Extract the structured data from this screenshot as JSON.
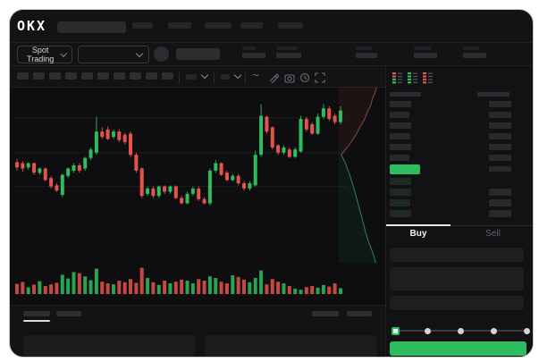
{
  "header": {
    "brand": "OKX",
    "market_selector": "Spot Trading"
  },
  "colors": {
    "up": "#2ebd5e",
    "down": "#e5534b",
    "accent": "#2ebd5e",
    "ask_line": "#8a4a46",
    "bid_line": "#2f7f62"
  },
  "skeleton": {
    "nav_items": [
      23,
      26,
      30,
      25,
      28
    ],
    "ticker_stats": [
      {
        "t": 15,
        "b": 26
      },
      {
        "t": 24,
        "b": 28
      },
      {
        "t": 18,
        "b": 24
      },
      {
        "t": 20,
        "b": 26
      },
      {
        "t": 18,
        "b": 26
      }
    ],
    "interval_buttons": 10,
    "bottom_tabs": [
      30,
      28
    ],
    "bottom_right_items": [
      30,
      28
    ]
  },
  "toolbar_icons": [
    "indicator-dropdown",
    "indicator-dropdown",
    "line-wave-icon",
    "draw-pencil-icon",
    "camera-icon",
    "history-icon",
    "fullscreen-icon"
  ],
  "chart_data": {
    "type": "candlestick",
    "title": "",
    "xlabel": "",
    "ylabel": "",
    "ylim": [
      0,
      100
    ],
    "grid": true,
    "gridlines": [
      84,
      51,
      19
    ],
    "candles": [
      [
        42,
        45,
        34,
        37
      ],
      [
        41,
        43,
        33,
        36
      ],
      [
        37,
        42,
        35,
        41
      ],
      [
        41,
        42,
        30,
        32
      ],
      [
        32,
        37,
        30,
        36
      ],
      [
        36,
        37,
        24,
        25
      ],
      [
        27,
        29,
        17,
        19
      ],
      [
        20,
        22,
        14,
        15
      ],
      [
        11,
        31,
        9,
        30
      ],
      [
        29,
        37,
        27,
        36
      ],
      [
        34,
        41,
        32,
        39
      ],
      [
        39,
        41,
        32,
        34
      ],
      [
        36,
        47,
        34,
        46
      ],
      [
        46,
        56,
        44,
        54
      ],
      [
        51,
        85,
        49,
        71
      ],
      [
        71,
        75,
        64,
        66
      ],
      [
        73,
        76,
        63,
        64
      ],
      [
        66,
        73,
        64,
        71
      ],
      [
        71,
        73,
        61,
        63
      ],
      [
        68,
        70,
        59,
        61
      ],
      [
        69,
        71,
        47,
        49
      ],
      [
        49,
        51,
        32,
        34
      ],
      [
        36,
        37,
        8,
        10
      ],
      [
        12,
        19,
        10,
        17
      ],
      [
        17,
        19,
        8,
        10
      ],
      [
        10,
        20,
        8,
        19
      ],
      [
        19,
        20,
        12,
        14
      ],
      [
        14,
        20,
        12,
        19
      ],
      [
        19,
        20,
        7,
        8
      ],
      [
        8,
        10,
        2,
        3
      ],
      [
        3,
        14,
        2,
        12
      ],
      [
        12,
        19,
        10,
        17
      ],
      [
        17,
        19,
        5,
        7
      ],
      [
        7,
        9,
        2,
        3
      ],
      [
        3,
        36,
        1,
        34
      ],
      [
        34,
        44,
        32,
        41
      ],
      [
        41,
        42,
        29,
        30
      ],
      [
        32,
        34,
        24,
        25
      ],
      [
        25,
        31,
        24,
        29
      ],
      [
        29,
        31,
        20,
        22
      ],
      [
        22,
        24,
        15,
        17
      ],
      [
        17,
        24,
        15,
        22
      ],
      [
        20,
        53,
        19,
        49
      ],
      [
        49,
        97,
        47,
        86
      ],
      [
        85,
        86,
        69,
        71
      ],
      [
        75,
        76,
        54,
        56
      ],
      [
        58,
        59,
        49,
        51
      ],
      [
        51,
        58,
        49,
        56
      ],
      [
        54,
        56,
        46,
        47
      ],
      [
        47,
        56,
        46,
        54
      ],
      [
        52,
        86,
        51,
        83
      ],
      [
        83,
        85,
        71,
        73
      ],
      [
        78,
        80,
        68,
        69
      ],
      [
        69,
        88,
        68,
        85
      ],
      [
        85,
        97,
        83,
        93
      ],
      [
        93,
        95,
        81,
        83
      ],
      [
        86,
        88,
        78,
        80
      ],
      [
        80,
        95,
        78,
        91
      ]
    ],
    "volume": [
      38,
      45,
      25,
      35,
      48,
      30,
      36,
      42,
      72,
      58,
      82,
      78,
      66,
      52,
      95,
      46,
      40,
      36,
      50,
      44,
      56,
      42,
      98,
      60,
      44,
      34,
      50,
      40,
      46,
      54,
      50,
      40,
      56,
      50,
      66,
      60,
      46,
      40,
      70,
      64,
      54,
      44,
      60,
      88,
      36,
      56,
      46,
      40,
      30,
      20,
      16,
      26,
      30,
      24,
      34,
      28,
      40,
      22
    ]
  },
  "depth": {
    "asks": [
      [
        0.92,
        0
      ],
      [
        0.88,
        0.08
      ],
      [
        0.82,
        0.16
      ],
      [
        0.78,
        0.26
      ],
      [
        0.7,
        0.36
      ],
      [
        0.62,
        0.48
      ],
      [
        0.52,
        0.58
      ],
      [
        0.44,
        0.68
      ],
      [
        0.34,
        0.78
      ],
      [
        0.22,
        0.88
      ],
      [
        0.06,
        1
      ]
    ],
    "bids": [
      [
        0.06,
        0
      ],
      [
        0.16,
        0.08
      ],
      [
        0.26,
        0.18
      ],
      [
        0.36,
        0.3
      ],
      [
        0.46,
        0.44
      ],
      [
        0.56,
        0.58
      ],
      [
        0.64,
        0.7
      ],
      [
        0.72,
        0.8
      ],
      [
        0.82,
        0.9
      ],
      [
        0.9,
        1
      ]
    ]
  },
  "order_book": {
    "view_modes": [
      "book-split-icon",
      "book-buys-icon",
      "book-sells-icon"
    ],
    "header": {
      "l": 35,
      "r": 36
    },
    "asks": [
      {
        "l": 24,
        "r": 25
      },
      {
        "l": 22,
        "r": 25
      },
      {
        "l": 24,
        "r": 25
      },
      {
        "l": 23,
        "r": 25
      },
      {
        "l": 24,
        "r": 25
      },
      {
        "l": 22,
        "r": 25
      }
    ],
    "last_price_row": {
      "w": 34,
      "r": 25
    },
    "bids": [
      {
        "l": 24,
        "r": 0
      },
      {
        "l": 24,
        "r": 25
      },
      {
        "l": 23,
        "r": 25
      },
      {
        "l": 24,
        "r": 25
      }
    ]
  },
  "trade_tabs": {
    "buy": "Buy",
    "sell": "Sell",
    "active": "buy"
  },
  "trade_form": {
    "inputs": 3,
    "slider_percents": [
      0,
      25,
      50,
      75,
      100
    ],
    "slider_value": 0
  }
}
